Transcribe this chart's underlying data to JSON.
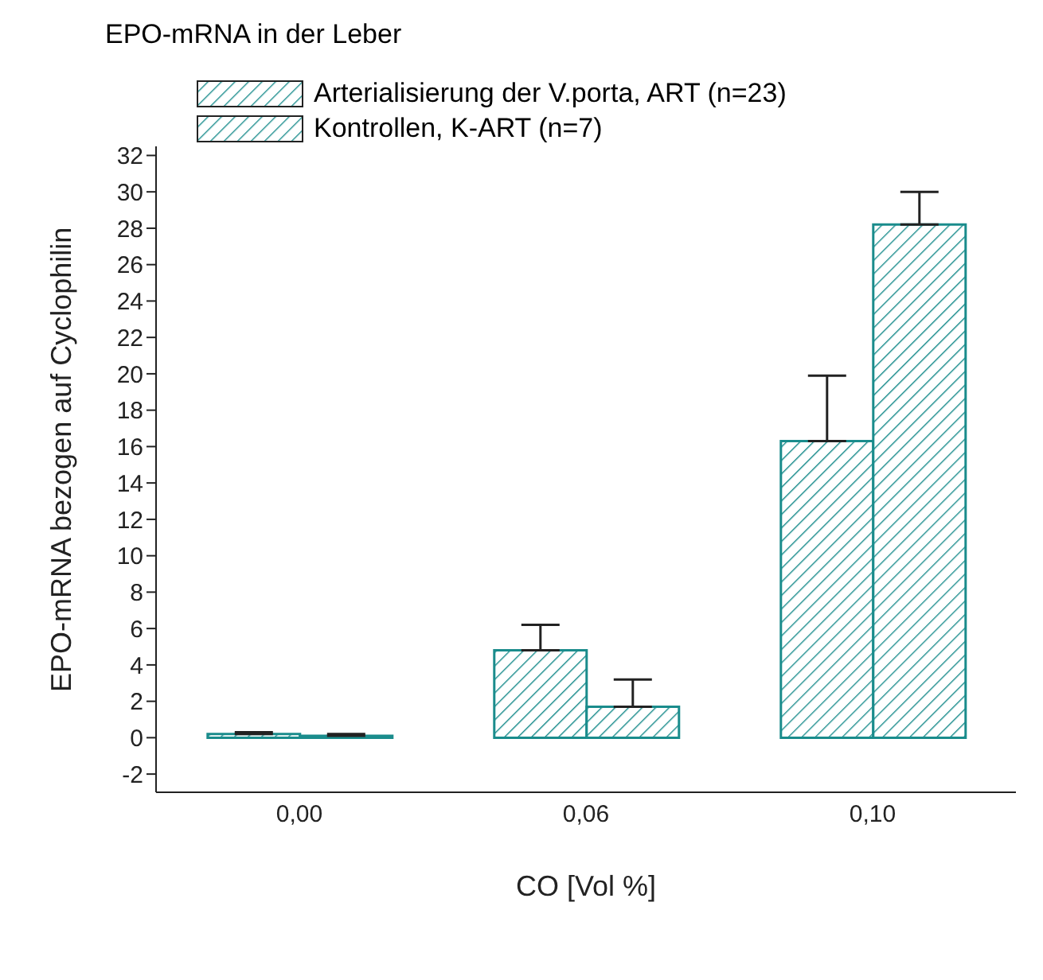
{
  "chart_data": {
    "type": "bar",
    "title": "EPO-mRNA in der Leber",
    "xlabel": "CO [Vol %]",
    "ylabel": "EPO-mRNA bezogen auf Cyclophilin",
    "categories": [
      "0,00",
      "0,06",
      "0,10"
    ],
    "series": [
      {
        "name": "Arterialisierung der V.porta, ART (n=23)",
        "color": "#1a8c8c",
        "values": [
          0.2,
          4.8,
          16.3
        ],
        "errors": [
          [
            0.2,
            0.3
          ],
          [
            4.8,
            6.2
          ],
          [
            16.3,
            19.9
          ]
        ]
      },
      {
        "name": "Kontrollen, K-ART (n=7)",
        "color": "#1a8c8c",
        "values": [
          0.1,
          1.7,
          28.2
        ],
        "errors": [
          [
            0.1,
            0.2
          ],
          [
            1.7,
            3.2
          ],
          [
            28.2,
            30.0
          ]
        ]
      }
    ],
    "ylim": [
      -3,
      32.5
    ],
    "yticks": [
      -2,
      0,
      2,
      4,
      6,
      8,
      10,
      12,
      14,
      16,
      18,
      20,
      22,
      24,
      26,
      28,
      30,
      32
    ],
    "grid": false,
    "legend": "top left"
  }
}
